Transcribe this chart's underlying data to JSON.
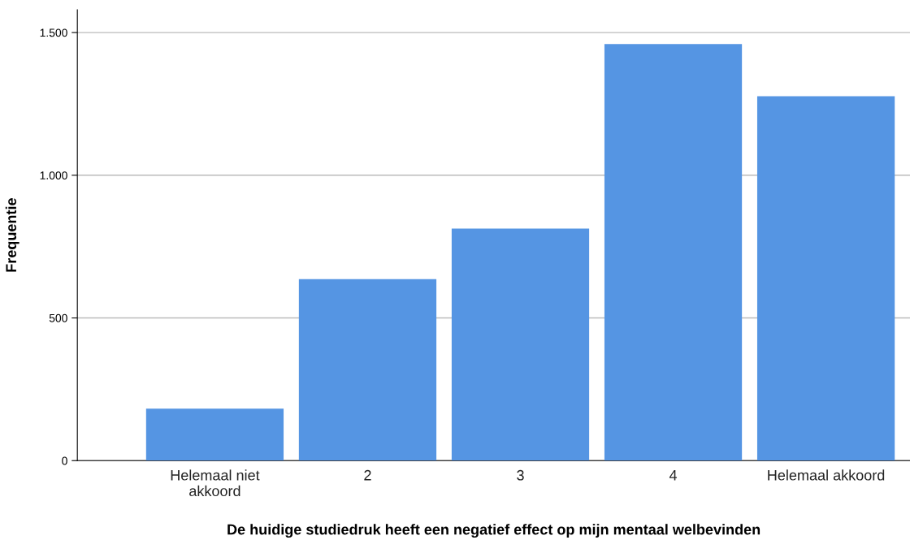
{
  "chart_data": {
    "type": "bar",
    "xlabel": "De huidige studiedruk heeft een negatief effect op mijn mentaal welbevinden",
    "ylabel": "Frequentie",
    "categories": [
      "Helemaal niet\nakkoord",
      "2",
      "3",
      "4",
      "Helemaal akkoord"
    ],
    "values": [
      182,
      636,
      813,
      1460,
      1277
    ],
    "color": "#5595e3",
    "ylim": [
      0,
      1580
    ],
    "yticks": [
      0,
      500,
      {
        "value": 1000,
        "label": "1.000"
      },
      {
        "value": 1500,
        "label": "1.500"
      }
    ],
    "grid": "y"
  }
}
